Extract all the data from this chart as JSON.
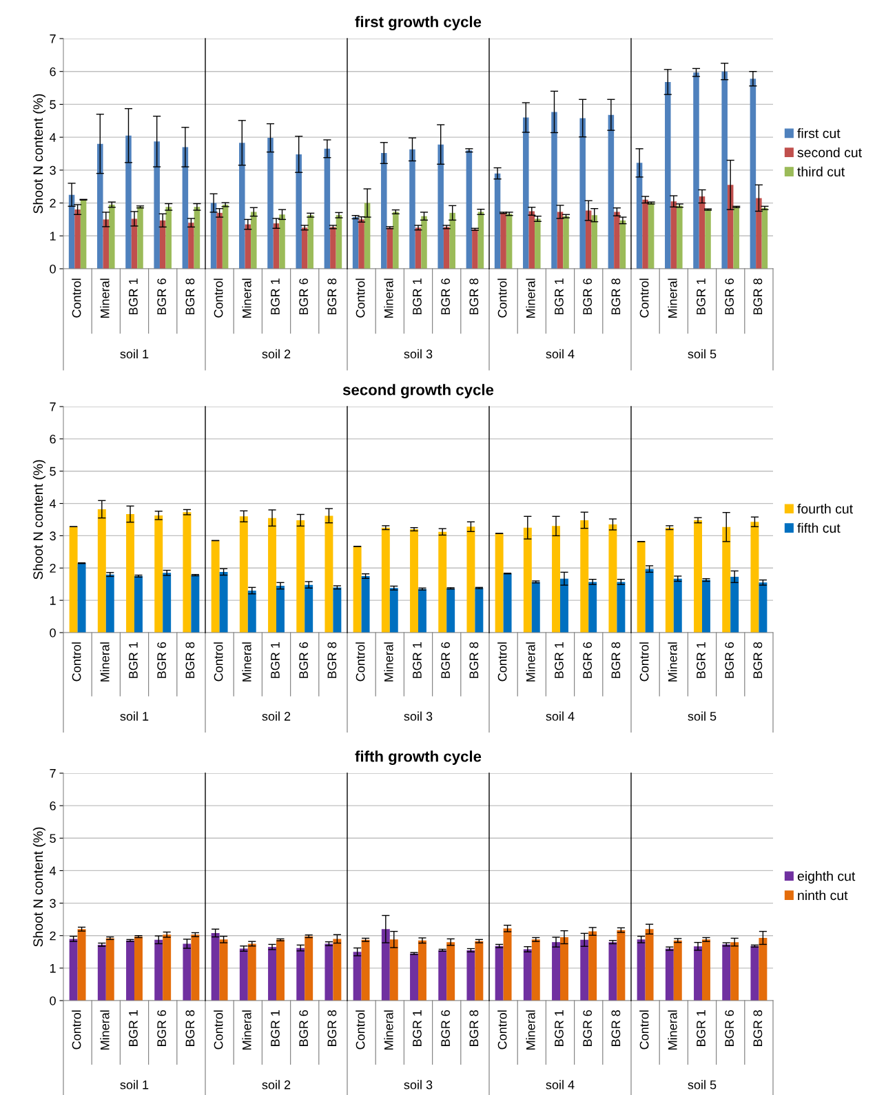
{
  "chart_data": [
    {
      "type": "bar",
      "title": "first growth cycle",
      "ylabel": "Shoot N content (%)",
      "categories": [
        "Control",
        "Mineral",
        "BGR 1",
        "BGR 6",
        "BGR 8",
        "Control",
        "Mineral",
        "BGR 1",
        "BGR 6",
        "BGR 8",
        "Control",
        "Mineral",
        "BGR 1",
        "BGR 6",
        "BGR 8",
        "Control",
        "Mineral",
        "BGR 1",
        "BGR 6",
        "BGR 8",
        "Control",
        "Mineral",
        "BGR 1",
        "BGR 6",
        "BGR 8"
      ],
      "annotations": [
        "soil 1",
        "soil 2",
        "soil 3",
        "soil 4",
        "soil 5"
      ],
      "series": [
        {
          "name": "first cut",
          "color": "#4f81bd",
          "values": [
            2.25,
            3.8,
            4.05,
            3.87,
            3.7,
            2.0,
            3.83,
            3.98,
            3.48,
            3.65,
            1.57,
            3.52,
            3.63,
            3.78,
            3.6,
            2.9,
            4.6,
            4.77,
            4.58,
            4.68,
            3.22,
            5.68,
            5.97,
            6.0,
            5.78
          ],
          "errors": [
            0.35,
            0.9,
            0.82,
            0.77,
            0.6,
            0.28,
            0.68,
            0.43,
            0.55,
            0.27,
            0.05,
            0.32,
            0.35,
            0.6,
            0.05,
            0.17,
            0.45,
            0.63,
            0.57,
            0.47,
            0.43,
            0.38,
            0.12,
            0.25,
            0.22
          ]
        },
        {
          "name": "second cut",
          "color": "#c0504d",
          "values": [
            1.8,
            1.5,
            1.52,
            1.47,
            1.4,
            1.7,
            1.35,
            1.38,
            1.25,
            1.27,
            1.5,
            1.25,
            1.25,
            1.27,
            1.2,
            1.7,
            1.75,
            1.73,
            1.77,
            1.73,
            2.1,
            2.05,
            2.2,
            2.55,
            2.15
          ],
          "errors": [
            0.15,
            0.22,
            0.22,
            0.2,
            0.13,
            0.13,
            0.15,
            0.15,
            0.07,
            0.05,
            0.08,
            0.03,
            0.07,
            0.05,
            0.03,
            0.02,
            0.12,
            0.2,
            0.3,
            0.12,
            0.1,
            0.17,
            0.2,
            0.75,
            0.4
          ]
        },
        {
          "name": "third cut",
          "color": "#9bbb59",
          "values": [
            2.1,
            1.95,
            1.88,
            1.88,
            1.88,
            1.95,
            1.73,
            1.65,
            1.63,
            1.63,
            2.0,
            1.73,
            1.6,
            1.7,
            1.73,
            1.67,
            1.52,
            1.6,
            1.63,
            1.47,
            2.0,
            1.92,
            1.8,
            1.88,
            1.85
          ],
          "errors": [
            0.01,
            0.08,
            0.03,
            0.1,
            0.1,
            0.06,
            0.13,
            0.15,
            0.06,
            0.08,
            0.43,
            0.06,
            0.12,
            0.22,
            0.08,
            0.05,
            0.08,
            0.05,
            0.2,
            0.1,
            0.03,
            0.05,
            0.02,
            0.02,
            0.05
          ]
        }
      ],
      "ylim": [
        0,
        7
      ],
      "yticks": [
        0,
        1,
        2,
        3,
        4,
        5,
        6,
        7
      ],
      "grid": "y",
      "legend": "right"
    },
    {
      "type": "bar",
      "title": "second growth cycle",
      "ylabel": "Shoot N content (%)",
      "categories": [
        "Control",
        "Mineral",
        "BGR 1",
        "BGR 6",
        "BGR 8",
        "Control",
        "Mineral",
        "BGR 1",
        "BGR 6",
        "BGR 8",
        "Control",
        "Mineral",
        "BGR 1",
        "BGR 6",
        "BGR 8",
        "Control",
        "Mineral",
        "BGR 1",
        "BGR 6",
        "BGR 8",
        "Control",
        "Mineral",
        "BGR 1",
        "BGR 6",
        "BGR 8"
      ],
      "annotations": [
        "soil 1",
        "soil 2",
        "soil 3",
        "soil 4",
        "soil 5"
      ],
      "series": [
        {
          "name": "fourth cut",
          "color": "#ffc000",
          "values": [
            3.28,
            3.82,
            3.67,
            3.63,
            3.73,
            2.85,
            3.6,
            3.55,
            3.48,
            3.62,
            2.67,
            3.25,
            3.2,
            3.12,
            3.28,
            3.07,
            3.25,
            3.3,
            3.48,
            3.35,
            2.82,
            3.25,
            3.48,
            3.27,
            3.43
          ],
          "errors": [
            0,
            0.27,
            0.25,
            0.13,
            0.08,
            0,
            0.17,
            0.25,
            0.18,
            0.22,
            0,
            0.06,
            0.05,
            0.1,
            0.15,
            0,
            0.35,
            0.3,
            0.25,
            0.17,
            0,
            0.06,
            0.08,
            0.45,
            0.15
          ]
        },
        {
          "name": "fifth cut",
          "color": "#0070c0",
          "values": [
            2.15,
            1.8,
            1.75,
            1.85,
            1.78,
            1.88,
            1.3,
            1.45,
            1.48,
            1.4,
            1.75,
            1.38,
            1.35,
            1.37,
            1.38,
            1.83,
            1.57,
            1.67,
            1.57,
            1.57,
            1.97,
            1.67,
            1.63,
            1.73,
            1.55
          ],
          "errors": [
            0.01,
            0.06,
            0.03,
            0.08,
            0.02,
            0.1,
            0.1,
            0.1,
            0.1,
            0.05,
            0.07,
            0.06,
            0.03,
            0.02,
            0.02,
            0.01,
            0.03,
            0.2,
            0.08,
            0.08,
            0.1,
            0.08,
            0.04,
            0.18,
            0.08
          ]
        }
      ],
      "ylim": [
        0,
        7
      ],
      "yticks": [
        0,
        1,
        2,
        3,
        4,
        5,
        6,
        7
      ],
      "grid": "y",
      "legend": "right"
    },
    {
      "type": "bar",
      "title": "fifth growth cycle",
      "ylabel": "Shoot N content (%)",
      "categories": [
        "Control",
        "Mineral",
        "BGR 1",
        "BGR 6",
        "BGR 8",
        "Control",
        "Mineral",
        "BGR 1",
        "BGR 6",
        "BGR 8",
        "Control",
        "Mineral",
        "BGR 1",
        "BGR 6",
        "BGR 8",
        "Control",
        "Mineral",
        "BGR 1",
        "BGR 6",
        "BGR 8",
        "Control",
        "Mineral",
        "BGR 1",
        "BGR 6",
        "BGR 8"
      ],
      "annotations": [
        "soil 1",
        "soil 2",
        "soil 3",
        "soil 4",
        "soil 5"
      ],
      "series": [
        {
          "name": "eighth cut",
          "color": "#7030a0",
          "values": [
            1.9,
            1.72,
            1.85,
            1.87,
            1.75,
            2.08,
            1.6,
            1.65,
            1.62,
            1.75,
            1.5,
            2.2,
            1.45,
            1.55,
            1.55,
            1.68,
            1.58,
            1.8,
            1.87,
            1.8,
            1.88,
            1.6,
            1.67,
            1.73,
            1.68
          ],
          "errors": [
            0.08,
            0.05,
            0.03,
            0.12,
            0.14,
            0.12,
            0.08,
            0.08,
            0.09,
            0.06,
            0.12,
            0.42,
            0.03,
            0.03,
            0.05,
            0.05,
            0.08,
            0.15,
            0.2,
            0.05,
            0.1,
            0.05,
            0.12,
            0.05,
            0.03
          ]
        },
        {
          "name": "ninth cut",
          "color": "#e46c0a",
          "values": [
            2.2,
            1.92,
            1.97,
            2.03,
            2.03,
            1.88,
            1.75,
            1.87,
            1.98,
            1.9,
            1.87,
            1.88,
            1.85,
            1.8,
            1.83,
            2.22,
            1.88,
            1.95,
            2.13,
            2.17,
            2.2,
            1.85,
            1.88,
            1.8,
            1.93
          ],
          "errors": [
            0.06,
            0.04,
            0.03,
            0.08,
            0.06,
            0.1,
            0.07,
            0.03,
            0.04,
            0.13,
            0.05,
            0.25,
            0.08,
            0.1,
            0.05,
            0.1,
            0.06,
            0.2,
            0.12,
            0.07,
            0.15,
            0.06,
            0.06,
            0.12,
            0.2
          ]
        }
      ],
      "ylim": [
        0,
        7
      ],
      "yticks": [
        0,
        1,
        2,
        3,
        4,
        5,
        6,
        7
      ],
      "grid": "y",
      "legend": "right"
    }
  ]
}
